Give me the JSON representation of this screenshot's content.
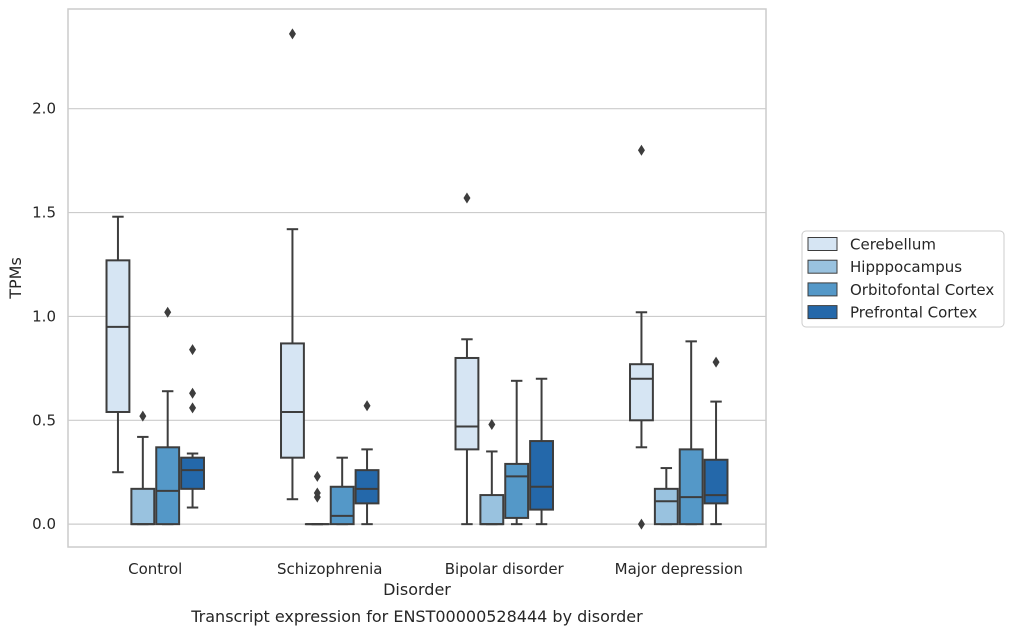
{
  "chart_data": {
    "type": "boxplot",
    "caption": "Transcript expression for ENST00000528444 by disorder",
    "xlabel": "Disorder",
    "ylabel": "TPMs",
    "ylim": [
      -0.11,
      2.48
    ],
    "yticks": [
      0.0,
      0.5,
      1.0,
      1.5,
      2.0
    ],
    "ytick_labels": [
      "0.0",
      "0.5",
      "1.0",
      "1.5",
      "2.0"
    ],
    "grid": "horizontal",
    "legend_placement": "right",
    "categories": [
      "Control",
      "Schizophrenia",
      "Bipolar disorder",
      "Major depression"
    ],
    "series": [
      {
        "name": "Cerebellum",
        "color": "#d6e5f3",
        "boxes": [
          {
            "whislo": 0.25,
            "q1": 0.54,
            "med": 0.95,
            "q3": 1.27,
            "whishi": 1.48,
            "fliers": []
          },
          {
            "whislo": 0.12,
            "q1": 0.32,
            "med": 0.54,
            "q3": 0.87,
            "whishi": 1.42,
            "fliers": [
              2.36
            ]
          },
          {
            "whislo": 0.0,
            "q1": 0.36,
            "med": 0.47,
            "q3": 0.8,
            "whishi": 0.89,
            "fliers": [
              1.57
            ]
          },
          {
            "whislo": 0.37,
            "q1": 0.5,
            "med": 0.7,
            "q3": 0.77,
            "whishi": 1.02,
            "fliers": [
              1.8,
              0.0
            ]
          }
        ]
      },
      {
        "name": "Hipppocampus",
        "color": "#99c2df",
        "boxes": [
          {
            "whislo": 0.0,
            "q1": 0.0,
            "med": 0.0,
            "q3": 0.17,
            "whishi": 0.42,
            "fliers": [
              0.52
            ]
          },
          {
            "whislo": 0.0,
            "q1": 0.0,
            "med": 0.0,
            "q3": 0.0,
            "whishi": 0.0,
            "fliers": [
              0.23,
              0.15,
              0.13
            ]
          },
          {
            "whislo": 0.0,
            "q1": 0.0,
            "med": 0.0,
            "q3": 0.14,
            "whishi": 0.35,
            "fliers": [
              0.48
            ]
          },
          {
            "whislo": 0.0,
            "q1": 0.0,
            "med": 0.11,
            "q3": 0.17,
            "whishi": 0.27,
            "fliers": []
          }
        ]
      },
      {
        "name": "Orbitofontal Cortex",
        "color": "#5498c8",
        "boxes": [
          {
            "whislo": 0.0,
            "q1": 0.0,
            "med": 0.16,
            "q3": 0.37,
            "whishi": 0.64,
            "fliers": [
              1.02
            ]
          },
          {
            "whislo": 0.0,
            "q1": 0.0,
            "med": 0.04,
            "q3": 0.18,
            "whishi": 0.32,
            "fliers": []
          },
          {
            "whislo": 0.0,
            "q1": 0.03,
            "med": 0.23,
            "q3": 0.29,
            "whishi": 0.69,
            "fliers": []
          },
          {
            "whislo": 0.0,
            "q1": 0.0,
            "med": 0.13,
            "q3": 0.36,
            "whishi": 0.88,
            "fliers": []
          }
        ]
      },
      {
        "name": "Prefrontal Cortex",
        "color": "#2468aa",
        "boxes": [
          {
            "whislo": 0.08,
            "q1": 0.17,
            "med": 0.26,
            "q3": 0.32,
            "whishi": 0.34,
            "fliers": [
              0.84,
              0.63,
              0.56
            ]
          },
          {
            "whislo": 0.0,
            "q1": 0.1,
            "med": 0.17,
            "q3": 0.26,
            "whishi": 0.36,
            "fliers": [
              0.57
            ]
          },
          {
            "whislo": 0.0,
            "q1": 0.07,
            "med": 0.18,
            "q3": 0.4,
            "whishi": 0.7,
            "fliers": []
          },
          {
            "whislo": 0.0,
            "q1": 0.1,
            "med": 0.14,
            "q3": 0.31,
            "whishi": 0.59,
            "fliers": [
              0.78
            ]
          }
        ]
      }
    ]
  }
}
